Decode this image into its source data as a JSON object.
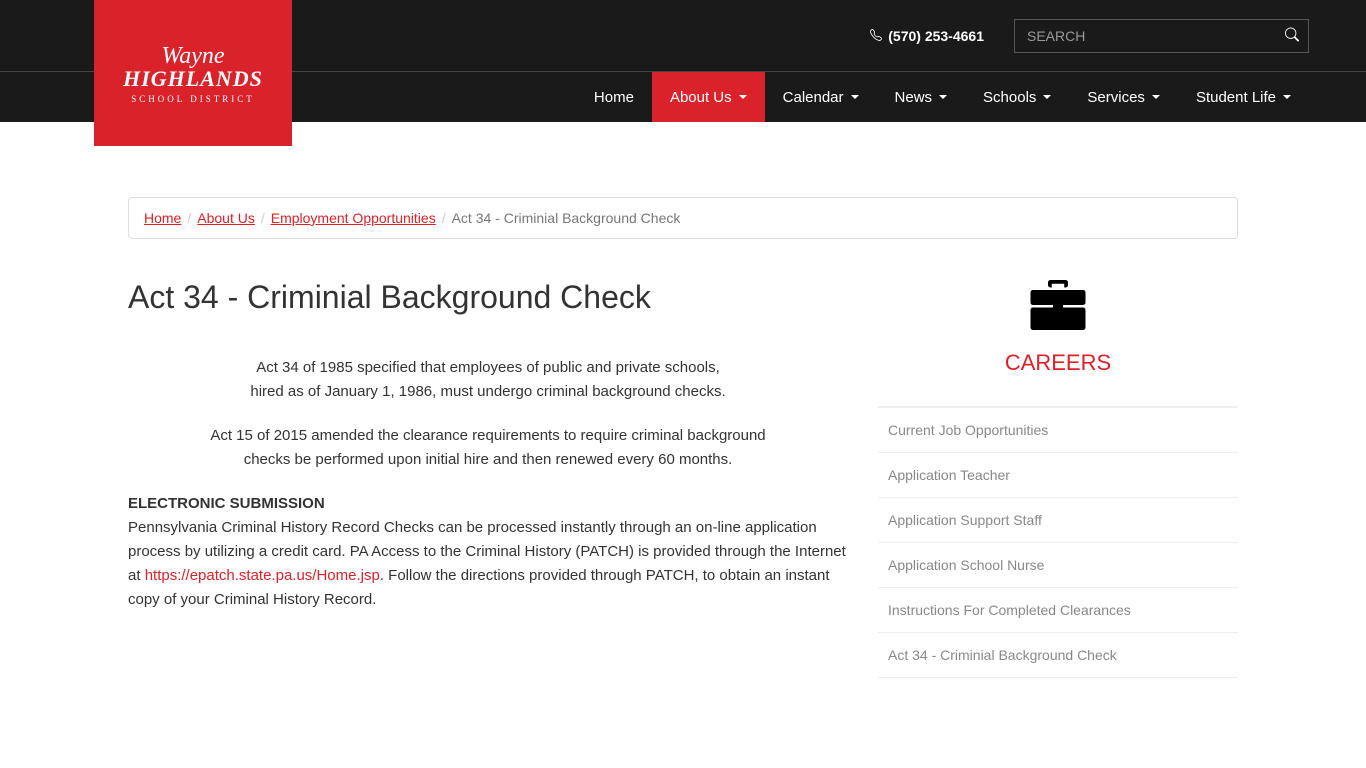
{
  "header": {
    "logo": {
      "line1": "Wayne",
      "line2": "HIGHLANDS",
      "line3": "SCHOOL DISTRICT"
    },
    "phone": "(570) 253-4661",
    "search_placeholder": "SEARCH"
  },
  "nav": {
    "items": [
      {
        "label": "Home",
        "dropdown": false,
        "active": false
      },
      {
        "label": "About Us",
        "dropdown": true,
        "active": true
      },
      {
        "label": "Calendar",
        "dropdown": true,
        "active": false
      },
      {
        "label": "News",
        "dropdown": true,
        "active": false
      },
      {
        "label": "Schools",
        "dropdown": true,
        "active": false
      },
      {
        "label": "Services",
        "dropdown": true,
        "active": false
      },
      {
        "label": "Student Life",
        "dropdown": true,
        "active": false
      }
    ]
  },
  "breadcrumb": {
    "items": [
      {
        "label": "Home",
        "link": true
      },
      {
        "label": "About Us",
        "link": true
      },
      {
        "label": "Employment Opportunities",
        "link": true
      },
      {
        "label": "Act 34 - Criminial Background Check",
        "link": false
      }
    ]
  },
  "page": {
    "title": "Act 34 - Criminial Background Check",
    "para1_line1": "Act 34 of 1985 specified that employees of public and private schools,",
    "para1_line2": "hired as of January 1, 1986, must undergo criminal background checks.",
    "para2_line1": "Act 15 of 2015 amended the clearance requirements to require criminal background",
    "para2_line2": "checks be performed upon initial hire and then renewed every 60 months.",
    "section_heading": "ELECTRONIC SUBMISSION",
    "para3_part1": "Pennsylvania Criminal History Record Checks can be processed instantly through an on-line application process by utilizing a credit card. PA Access to the Criminal History (PATCH) is provided through the Internet at ",
    "para3_link": "https://epatch.state.pa.us/Home.jsp",
    "para3_part2": ". Follow the directions provided through PATCH, to obtain an instant copy of your Criminal History Record."
  },
  "sidebar": {
    "title": "CAREERS",
    "links": [
      "Current Job Opportunities",
      "Application Teacher",
      "Application Support Staff",
      "Application School Nurse",
      "Instructions For Completed Clearances",
      "Act 34 - Criminial Background Check"
    ]
  }
}
